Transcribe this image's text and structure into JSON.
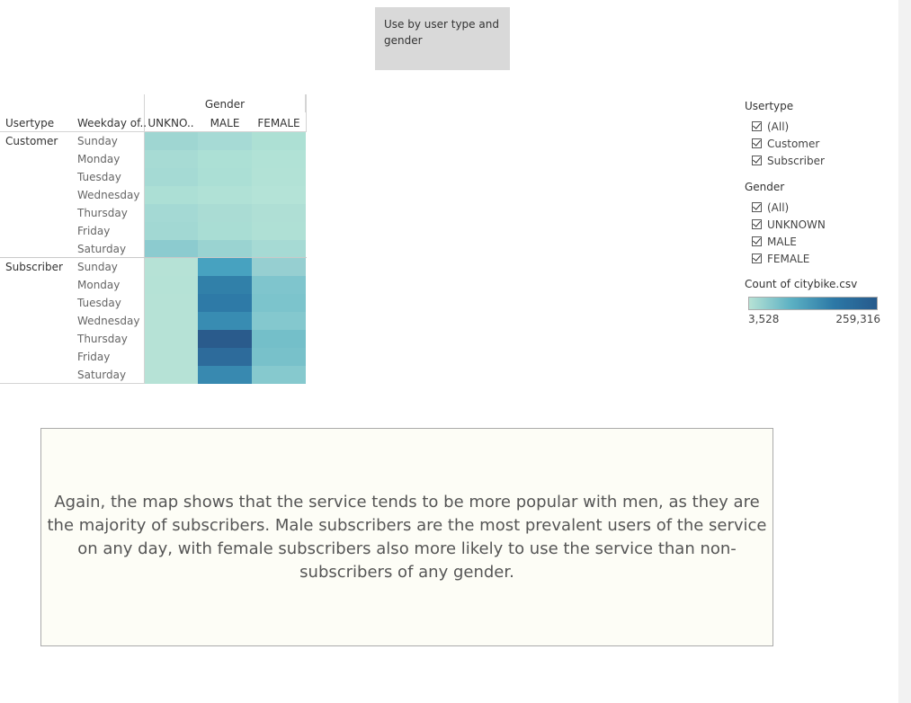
{
  "title": "Use by user type and gender",
  "table": {
    "gender_header": "Gender",
    "col_usertype": "Usertype",
    "col_weekday": "Weekday of..",
    "genders": [
      "UNKNO..",
      "MALE",
      "FEMALE"
    ],
    "groups": [
      {
        "usertype": "Customer",
        "days": [
          "Sunday",
          "Monday",
          "Tuesday",
          "Wednesday",
          "Thursday",
          "Friday",
          "Saturday"
        ],
        "colors": [
          [
            "#9fd6d2",
            "#a6dad5",
            "#ade0d4"
          ],
          [
            "#a7dbd4",
            "#ace0d5",
            "#b1e2d6"
          ],
          [
            "#a5dad4",
            "#abdfd5",
            "#b2e2d6"
          ],
          [
            "#acdfd5",
            "#b0e1d6",
            "#b4e3d7"
          ],
          [
            "#a4d9d4",
            "#aadcd4",
            "#afdfd5"
          ],
          [
            "#a2d8d3",
            "#a9ddd4",
            "#afe0d5"
          ],
          [
            "#8ccbcf",
            "#9ad3d1",
            "#a6dad4"
          ]
        ]
      },
      {
        "usertype": "Subscriber",
        "days": [
          "Sunday",
          "Monday",
          "Tuesday",
          "Wednesday",
          "Thursday",
          "Friday",
          "Saturday"
        ],
        "colors": [
          [
            "#b6e2d6",
            "#47a2c0",
            "#96cfd1"
          ],
          [
            "#b5e2d6",
            "#3180a9",
            "#7fc5cd"
          ],
          [
            "#b6e2d6",
            "#2e7aa7",
            "#7cc4cc"
          ],
          [
            "#b6e2d6",
            "#388cb2",
            "#84c8ce"
          ],
          [
            "#b6e2d6",
            "#2a5b8c",
            "#74bfc9"
          ],
          [
            "#b6e2d6",
            "#2d6b9b",
            "#78c1ca"
          ],
          [
            "#b6e2d6",
            "#3889b0",
            "#86c9ce"
          ]
        ]
      }
    ]
  },
  "filters": {
    "usertype_title": "Usertype",
    "usertype_items": [
      "(All)",
      "Customer",
      "Subscriber"
    ],
    "gender_title": "Gender",
    "gender_items": [
      "(All)",
      "UNKNOWN",
      "MALE",
      "FEMALE"
    ]
  },
  "color_legend": {
    "title": "Count of citybike.csv",
    "min": "3,528",
    "max": "259,316"
  },
  "note": "Again, the map shows that the service tends to be more popular with men, as they are the majority of subscribers. Male subscribers are the most prevalent users of the service on any day, with female subscribers also more likely to use the service than non-subscribers of any gender."
}
